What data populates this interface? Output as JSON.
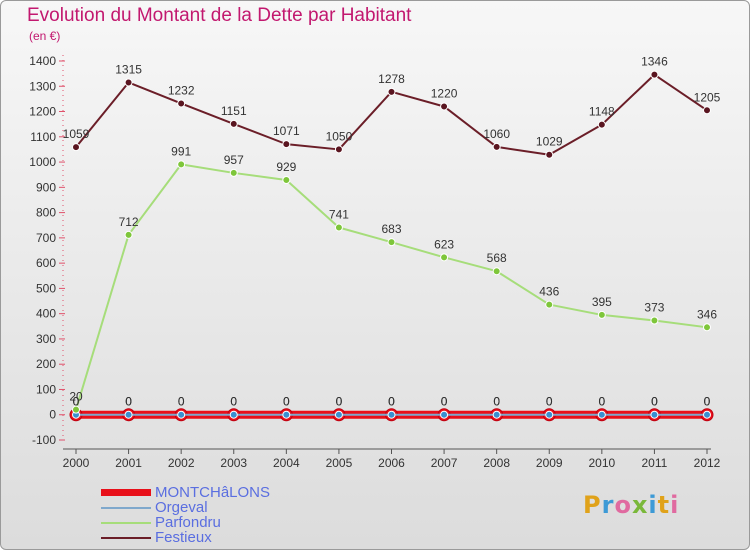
{
  "title": "Evolution du Montant de la Dette par Habitant",
  "subtitle": "(en €)",
  "logo": "Proxiti",
  "legend": [
    "MONTCHâLONS",
    "Orgeval",
    "Parfondru",
    "Festieux"
  ],
  "chart_data": {
    "type": "line",
    "title": "Evolution du Montant de la Dette par Habitant",
    "ylabel": "(en €)",
    "x": [
      2000,
      2001,
      2002,
      2003,
      2004,
      2005,
      2006,
      2007,
      2008,
      2009,
      2010,
      2011,
      2012
    ],
    "ylim": [
      -100,
      1400
    ],
    "yticks": [
      -100,
      0,
      100,
      200,
      300,
      400,
      500,
      600,
      700,
      800,
      900,
      1000,
      1100,
      1200,
      1300,
      1400
    ],
    "grid": false,
    "legend_position": "bottom-left",
    "series": [
      {
        "name": "MONTCHâLONS",
        "color": "#e8101a",
        "marker": "#e8101a",
        "width": 8,
        "labels": true,
        "values": [
          0,
          0,
          0,
          0,
          0,
          0,
          0,
          0,
          0,
          0,
          0,
          0,
          0
        ]
      },
      {
        "name": "Orgeval",
        "color": "#7fa8cc",
        "marker": "#3a8fd0",
        "width": 2,
        "labels": true,
        "values": [
          0,
          0,
          0,
          0,
          0,
          0,
          0,
          0,
          0,
          0,
          0,
          0,
          0
        ]
      },
      {
        "name": "Parfondru",
        "color": "#a6dd7a",
        "marker": "#7ec63a",
        "width": 2,
        "labels": true,
        "values": [
          20,
          712,
          991,
          957,
          929,
          741,
          683,
          623,
          568,
          436,
          395,
          373,
          346
        ]
      },
      {
        "name": "Festieux",
        "color": "#6b1e28",
        "marker": "#5a1520",
        "width": 2,
        "labels": true,
        "values": [
          1059,
          1315,
          1232,
          1151,
          1071,
          1050,
          1278,
          1220,
          1060,
          1029,
          1148,
          1346,
          1205
        ]
      }
    ]
  }
}
